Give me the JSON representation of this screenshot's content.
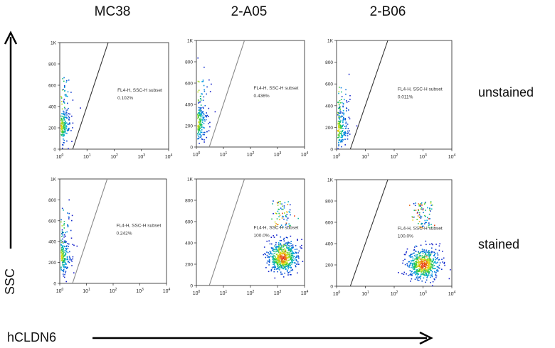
{
  "columns": [
    "MC38",
    "2-A05",
    "2-B06"
  ],
  "rows": [
    "unstained",
    "stained"
  ],
  "y_axis_label": "SSC",
  "x_axis_label": "hCLDN6",
  "gate_name": "FL4-H, SSC-H subset",
  "chart_data": [
    {
      "type": "scatter",
      "cell_line": "MC38",
      "condition": "unstained",
      "gate_percent": "0.102%",
      "x_scale": "log",
      "xlim": [
        1,
        10000
      ],
      "ylim": [
        0,
        1000
      ],
      "x_ticks": [
        "10^0",
        "10^1",
        "10^2",
        "10^3",
        "10^4"
      ],
      "y_ticks": [
        "0",
        "200",
        "400",
        "600",
        "800",
        "1K"
      ],
      "population_center": {
        "x": 1,
        "y": 220
      },
      "population": "hCLDN6-negative"
    },
    {
      "type": "scatter",
      "cell_line": "2-A05",
      "condition": "unstained",
      "gate_percent": "0.436%",
      "x_scale": "log",
      "xlim": [
        1,
        10000
      ],
      "ylim": [
        0,
        1000
      ],
      "x_ticks": [
        "10^0",
        "10^1",
        "10^2",
        "10^3",
        "10^4"
      ],
      "y_ticks": [
        "0",
        "200",
        "400",
        "600",
        "800",
        "1K"
      ],
      "population_center": {
        "x": 1,
        "y": 230
      },
      "population": "hCLDN6-negative"
    },
    {
      "type": "scatter",
      "cell_line": "2-B06",
      "condition": "unstained",
      "gate_percent": "0.011%",
      "x_scale": "log",
      "xlim": [
        1,
        10000
      ],
      "ylim": [
        0,
        1000
      ],
      "x_ticks": [
        "10^0",
        "10^1",
        "10^2",
        "10^3",
        "10^4"
      ],
      "y_ticks": [
        "0",
        "200",
        "400",
        "600",
        "800",
        "1K"
      ],
      "population_center": {
        "x": 1,
        "y": 190
      },
      "population": "hCLDN6-negative"
    },
    {
      "type": "scatter",
      "cell_line": "MC38",
      "condition": "stained",
      "gate_percent": "0.242%",
      "x_scale": "log",
      "xlim": [
        1,
        10000
      ],
      "ylim": [
        0,
        1000
      ],
      "x_ticks": [
        "10^0",
        "10^1",
        "10^2",
        "10^3",
        "10^4"
      ],
      "y_ticks": [
        "0",
        "200",
        "400",
        "600",
        "800",
        "1K"
      ],
      "population_center": {
        "x": 1,
        "y": 260
      },
      "population": "hCLDN6-negative"
    },
    {
      "type": "scatter",
      "cell_line": "2-A05",
      "condition": "stained",
      "gate_percent": "100.0%",
      "x_scale": "log",
      "xlim": [
        1,
        10000
      ],
      "ylim": [
        0,
        1000
      ],
      "x_ticks": [
        "10^0",
        "10^1",
        "10^2",
        "10^3",
        "10^4"
      ],
      "y_ticks": [
        "0",
        "200",
        "400",
        "600",
        "800",
        "1K"
      ],
      "population_center": {
        "x": 1500,
        "y": 260
      },
      "population": "hCLDN6-positive"
    },
    {
      "type": "scatter",
      "cell_line": "2-B06",
      "condition": "stained",
      "gate_percent": "100.0%",
      "x_scale": "log",
      "xlim": [
        1,
        10000
      ],
      "ylim": [
        0,
        1000
      ],
      "x_ticks": [
        "10^0",
        "10^1",
        "10^2",
        "10^3",
        "10^4"
      ],
      "y_ticks": [
        "0",
        "200",
        "400",
        "600",
        "800",
        "1K"
      ],
      "population_center": {
        "x": 1000,
        "y": 200
      },
      "population": "hCLDN6-positive"
    }
  ]
}
